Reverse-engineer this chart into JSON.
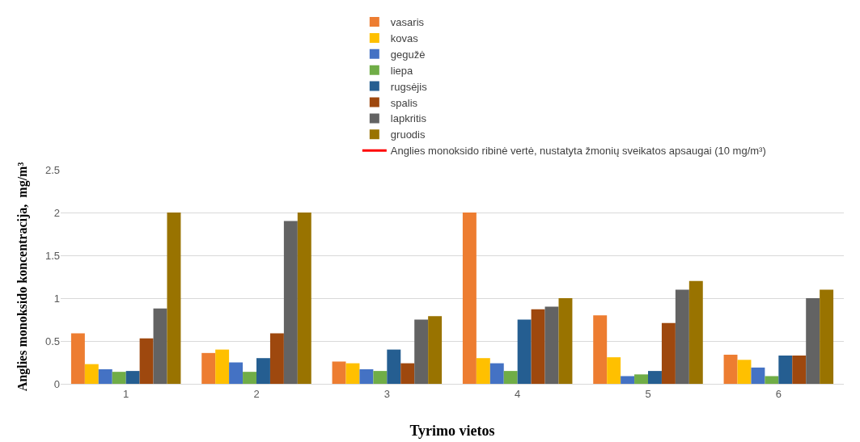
{
  "chart_data": {
    "type": "bar",
    "xlabel": "Tyrimo vietos",
    "ylabel": "Anglies monoksido koncentracija,  mg/m³",
    "categories": [
      "1",
      "2",
      "3",
      "4",
      "5",
      "6"
    ],
    "series": [
      {
        "name": "vasaris",
        "color": "#ed7d31",
        "values": [
          0.59,
          0.36,
          0.26,
          2.0,
          0.8,
          0.34
        ]
      },
      {
        "name": "kovas",
        "color": "#ffc000",
        "values": [
          0.23,
          0.4,
          0.24,
          0.3,
          0.31,
          0.28
        ]
      },
      {
        "name": "gegužė",
        "color": "#4472c4",
        "values": [
          0.17,
          0.25,
          0.17,
          0.24,
          0.09,
          0.19
        ]
      },
      {
        "name": "liepa",
        "color": "#70ad47",
        "values": [
          0.14,
          0.14,
          0.15,
          0.15,
          0.11,
          0.09
        ]
      },
      {
        "name": "rugsėjis",
        "color": "#255e91",
        "values": [
          0.15,
          0.3,
          0.4,
          0.75,
          0.15,
          0.33
        ]
      },
      {
        "name": "spalis",
        "color": "#9e480e",
        "values": [
          0.53,
          0.59,
          0.24,
          0.87,
          0.71,
          0.33
        ]
      },
      {
        "name": "lapkritis",
        "color": "#636363",
        "values": [
          0.88,
          1.9,
          0.75,
          0.9,
          1.1,
          1.0
        ]
      },
      {
        "name": "gruodis",
        "color": "#997300",
        "values": [
          2.0,
          2.0,
          0.79,
          1.0,
          1.2,
          1.1
        ]
      },
      {
        "name": "Anglies monoksido ribinė vertė, nustatyta žmonių sveikatos apsaugai (10 mg/m³)",
        "type": "line",
        "color": "#ff0000",
        "values": [
          null,
          null,
          null,
          null,
          null,
          null
        ]
      }
    ],
    "ylim": [
      0,
      2.5
    ],
    "yticks": [
      0,
      0.5,
      1,
      1.5,
      2,
      2.5
    ],
    "grid": "y",
    "legend": "top"
  }
}
